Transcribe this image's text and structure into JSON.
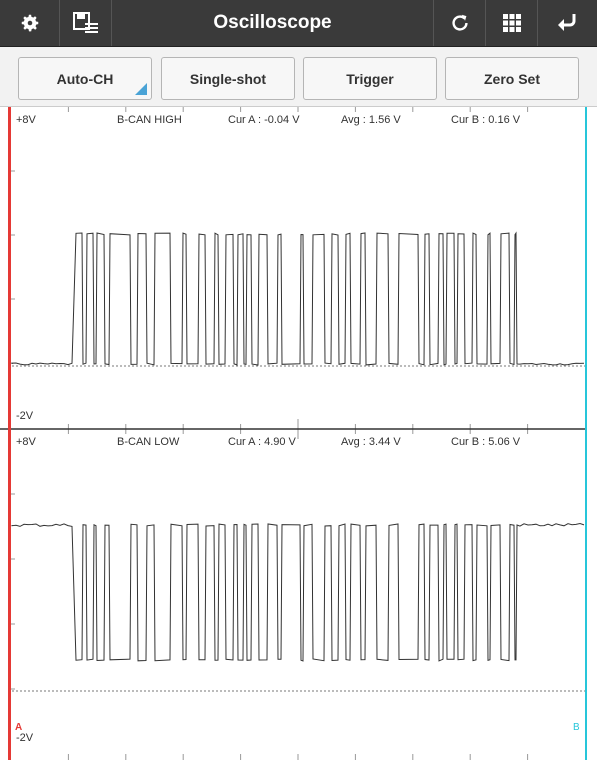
{
  "app": {
    "title": "Oscilloscope"
  },
  "icons": {
    "settings": "gear-icon",
    "save": "save-list-icon",
    "refresh": "refresh-icon",
    "grid": "grid-icon",
    "back": "return-icon"
  },
  "toolbar": {
    "buttons": [
      "Auto-CH",
      "Single-shot",
      "Trigger",
      "Zero Set"
    ]
  },
  "channels": [
    {
      "name": "B-CAN HIGH",
      "top": "+8V",
      "bottom": "-2V",
      "cur_a": "Cur A : -0.04 V",
      "avg": "Avg : 1.56 V",
      "cur_b": "Cur B : 0.16 V"
    },
    {
      "name": "B-CAN LOW",
      "top": "+8V",
      "bottom": "-2V",
      "cur_a": "Cur A : 4.90 V",
      "avg": "Avg : 3.44 V",
      "cur_b": "Cur B : 5.06 V"
    }
  ],
  "cursors": {
    "a_label": "A",
    "b_label": "B",
    "a_color": "#e53935",
    "b_color": "#26c6da"
  },
  "trace_color": "#333333"
}
